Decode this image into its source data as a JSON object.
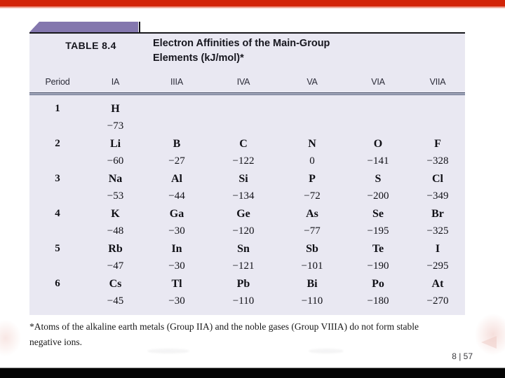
{
  "slide": {
    "page_indicator": "8 | 57"
  },
  "table": {
    "label": "TABLE 8.4",
    "title_lines": [
      "Electron Affinities of the Main-Group",
      "Elements (kJ/mol)*"
    ],
    "columns": [
      "Period",
      "IA",
      "IIIA",
      "IVA",
      "VA",
      "VIA",
      "VIIA"
    ],
    "rows": [
      {
        "period": "1",
        "cells": [
          {
            "symbol": "H",
            "value": "−73"
          },
          null,
          null,
          null,
          null,
          null
        ]
      },
      {
        "period": "2",
        "cells": [
          {
            "symbol": "Li",
            "value": "−60"
          },
          {
            "symbol": "B",
            "value": "−27"
          },
          {
            "symbol": "C",
            "value": "−122"
          },
          {
            "symbol": "N",
            "value": "0"
          },
          {
            "symbol": "O",
            "value": "−141"
          },
          {
            "symbol": "F",
            "value": "−328"
          }
        ]
      },
      {
        "period": "3",
        "cells": [
          {
            "symbol": "Na",
            "value": "−53"
          },
          {
            "symbol": "Al",
            "value": "−44"
          },
          {
            "symbol": "Si",
            "value": "−134"
          },
          {
            "symbol": "P",
            "value": "−72"
          },
          {
            "symbol": "S",
            "value": "−200"
          },
          {
            "symbol": "Cl",
            "value": "−349"
          }
        ]
      },
      {
        "period": "4",
        "cells": [
          {
            "symbol": "K",
            "value": "−48"
          },
          {
            "symbol": "Ga",
            "value": "−30"
          },
          {
            "symbol": "Ge",
            "value": "−120"
          },
          {
            "symbol": "As",
            "value": "−77"
          },
          {
            "symbol": "Se",
            "value": "−195"
          },
          {
            "symbol": "Br",
            "value": "−325"
          }
        ]
      },
      {
        "period": "5",
        "cells": [
          {
            "symbol": "Rb",
            "value": "−47"
          },
          {
            "symbol": "In",
            "value": "−30"
          },
          {
            "symbol": "Sn",
            "value": "−121"
          },
          {
            "symbol": "Sb",
            "value": "−101"
          },
          {
            "symbol": "Te",
            "value": "−190"
          },
          {
            "symbol": "I",
            "value": "−295"
          }
        ]
      },
      {
        "period": "6",
        "cells": [
          {
            "symbol": "Cs",
            "value": "−45"
          },
          {
            "symbol": "Tl",
            "value": "−30"
          },
          {
            "symbol": "Pb",
            "value": "−110"
          },
          {
            "symbol": "Bi",
            "value": "−110"
          },
          {
            "symbol": "Po",
            "value": "−180"
          },
          {
            "symbol": "At",
            "value": "−270"
          }
        ]
      }
    ],
    "footnote_lines": [
      "*Atoms of the alkaline earth metals (Group IIA) and the noble gases (Group VIIIA) do not form stable",
      "negative ions."
    ]
  },
  "colors": {
    "top_bar_red": "#d22408",
    "tab_purple": "#8477ae",
    "table_background": "#e9e8f2",
    "header_rule": "#6d7590",
    "bottom_bar_black": "#050505"
  }
}
